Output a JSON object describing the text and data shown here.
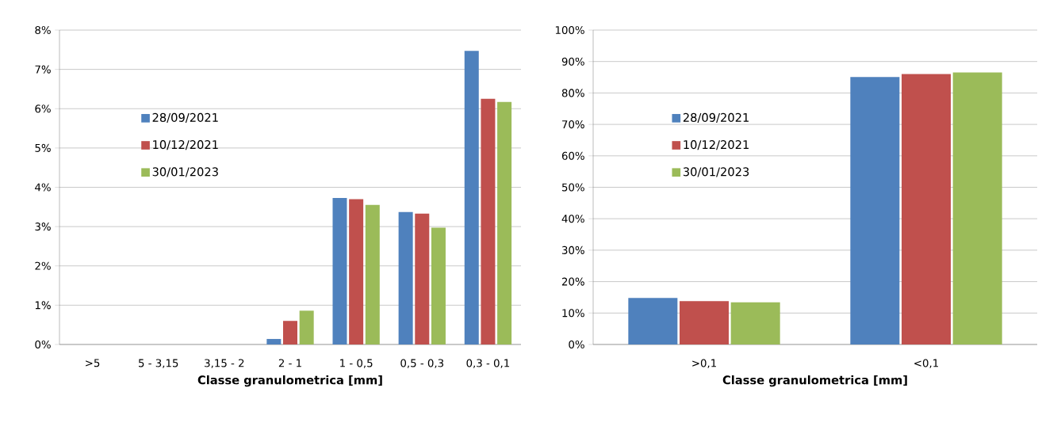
{
  "chart_data": [
    {
      "type": "bar",
      "xlabel": "Classe granulometrica [mm]",
      "categories": [
        ">5",
        "5 - 3,15",
        "3,15 - 2",
        "2 - 1",
        "1 - 0,5",
        "0,5 - 0,3",
        "0,3 - 0,1"
      ],
      "series": [
        {
          "name": "28/09/2021",
          "color": "#4f81bd",
          "values": [
            0,
            0,
            0,
            0.14,
            3.73,
            3.37,
            7.47
          ]
        },
        {
          "name": "10/12/2021",
          "color": "#c0504d",
          "values": [
            0,
            0,
            0,
            0.6,
            3.7,
            3.33,
            6.25
          ]
        },
        {
          "name": "30/01/2023",
          "color": "#9bbb59",
          "values": [
            0,
            0,
            0,
            0.86,
            3.55,
            2.97,
            6.17
          ]
        }
      ],
      "ylim": [
        0,
        8
      ],
      "yticks": [
        {
          "value": 0,
          "label": "0%"
        },
        {
          "value": 1,
          "label": "1%"
        },
        {
          "value": 2,
          "label": "2%"
        },
        {
          "value": 3,
          "label": "3%"
        },
        {
          "value": 4,
          "label": "4%"
        },
        {
          "value": 5,
          "label": "5%"
        },
        {
          "value": 6,
          "label": "6%"
        },
        {
          "value": 7,
          "label": "7%"
        },
        {
          "value": 8,
          "label": "8%"
        }
      ],
      "grid": "y",
      "legend": "left"
    },
    {
      "type": "bar",
      "xlabel": "Classe granulometrica [mm]",
      "categories": [
        ">0,1",
        "<0,1"
      ],
      "series": [
        {
          "name": "28/09/2021",
          "color": "#4f81bd",
          "values": [
            14.8,
            85.1
          ]
        },
        {
          "name": "10/12/2021",
          "color": "#c0504d",
          "values": [
            13.8,
            86.0
          ]
        },
        {
          "name": "30/01/2023",
          "color": "#9bbb59",
          "values": [
            13.4,
            86.5
          ]
        }
      ],
      "ylim": [
        0,
        100
      ],
      "yticks": [
        {
          "value": 0,
          "label": "0%"
        },
        {
          "value": 10,
          "label": "10%"
        },
        {
          "value": 20,
          "label": "20%"
        },
        {
          "value": 30,
          "label": "30%"
        },
        {
          "value": 40,
          "label": "40%"
        },
        {
          "value": 50,
          "label": "50%"
        },
        {
          "value": 60,
          "label": "60%"
        },
        {
          "value": 70,
          "label": "70%"
        },
        {
          "value": 80,
          "label": "80%"
        },
        {
          "value": 90,
          "label": "90%"
        },
        {
          "value": 100,
          "label": "100%"
        }
      ],
      "grid": "y",
      "legend": "left"
    }
  ]
}
